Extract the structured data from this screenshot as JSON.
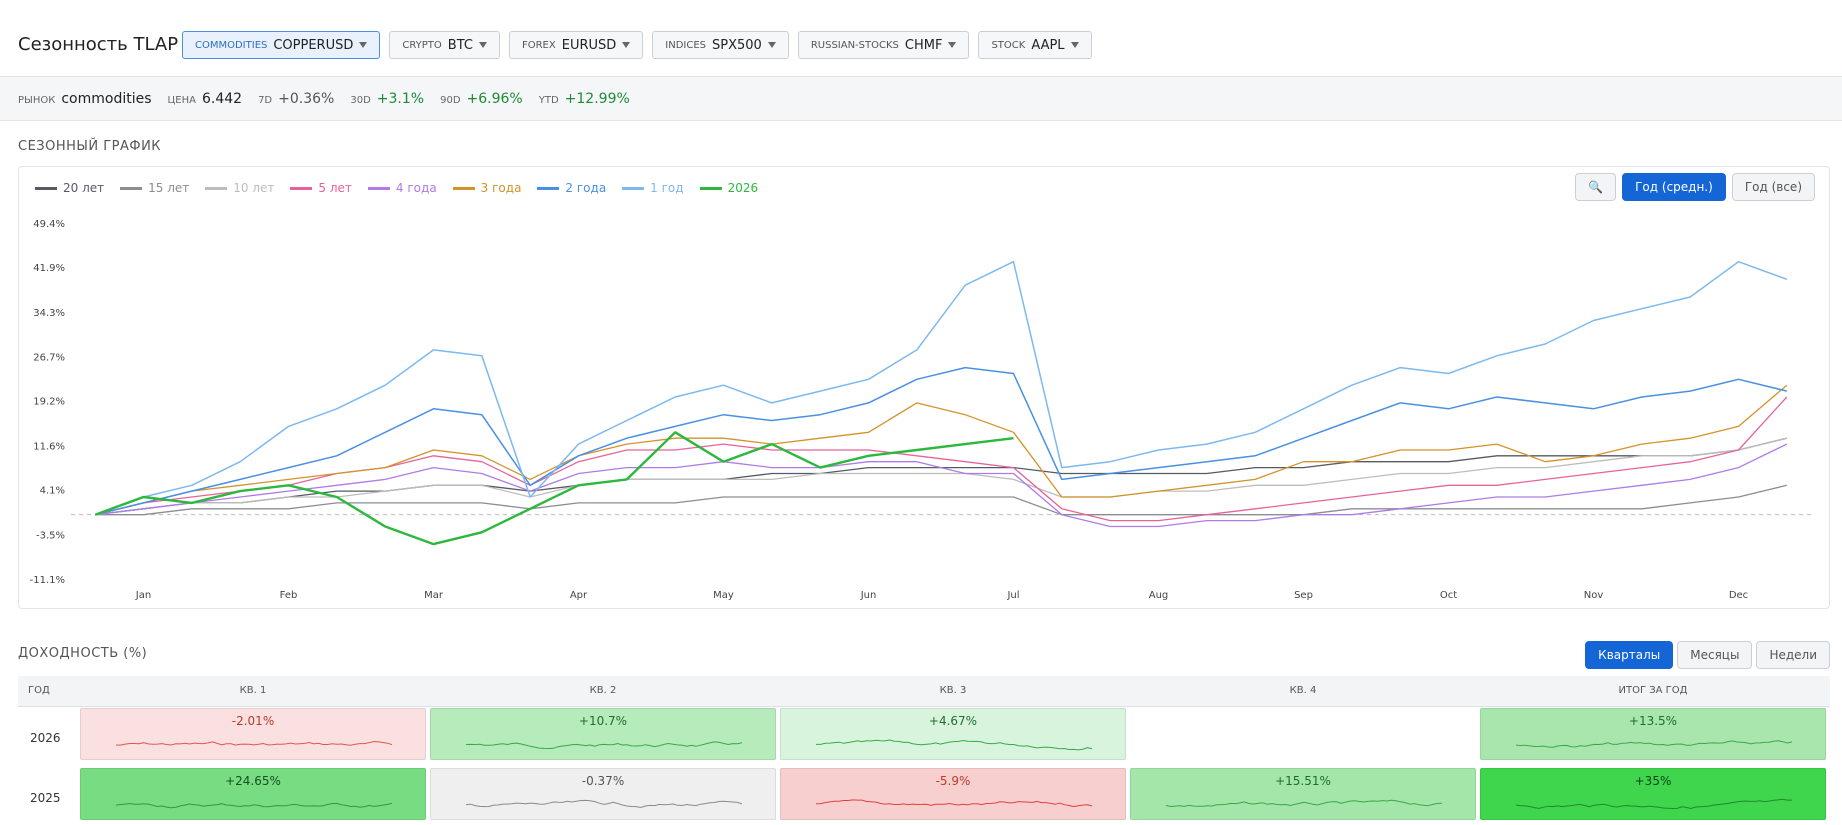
{
  "header": {
    "title": "Сезонность TLAP",
    "tabs": [
      {
        "category": "COMMODITIES",
        "symbol": "COPPERUSD",
        "active": true
      },
      {
        "category": "CRYPTO",
        "symbol": "BTC",
        "active": false
      },
      {
        "category": "FOREX",
        "symbol": "EURUSD",
        "active": false
      },
      {
        "category": "INDICES",
        "symbol": "SPX500",
        "active": false
      },
      {
        "category": "RUSSIAN-STOCKS",
        "symbol": "CHMF",
        "active": false
      },
      {
        "category": "STOCK",
        "symbol": "AAPL",
        "active": false
      }
    ]
  },
  "stats": [
    {
      "label": "РЫНОК",
      "value": "commodities",
      "color": "#222"
    },
    {
      "label": "ЦЕНА",
      "value": "6.442",
      "color": "#222"
    },
    {
      "label": "7D",
      "value": "+0.36%",
      "color": "#555"
    },
    {
      "label": "30D",
      "value": "+3.1%",
      "color": "#1e8a36"
    },
    {
      "label": "90D",
      "value": "+6.96%",
      "color": "#1e8a36"
    },
    {
      "label": "YTD",
      "value": "+12.99%",
      "color": "#1e8a36"
    }
  ],
  "chart_section": {
    "title": "СЕЗОННЫЙ ГРАФИК",
    "buttons": [
      {
        "label": "🔍",
        "active": false
      },
      {
        "label": "Год (средн.)",
        "active": true
      },
      {
        "label": "Год (все)",
        "active": false
      }
    ]
  },
  "chart_data": {
    "type": "line",
    "grid": false,
    "categories": [
      null,
      "Jan",
      null,
      null,
      "Feb",
      null,
      null,
      "Mar",
      null,
      null,
      "Apr",
      null,
      null,
      "May",
      null,
      null,
      "Jun",
      null,
      null,
      "Jul",
      null,
      null,
      "Aug",
      null,
      null,
      "Sep",
      null,
      null,
      "Oct",
      null,
      null,
      "Nov",
      null,
      null,
      "Dec",
      null
    ],
    "ylim": [
      -11.1,
      49.4
    ],
    "yticks": [
      {
        "value": 49.4,
        "label": "49.4%"
      },
      {
        "value": 41.9,
        "label": "41.9%"
      },
      {
        "value": 34.3,
        "label": "34.3%"
      },
      {
        "value": 26.7,
        "label": "26.7%"
      },
      {
        "value": 19.2,
        "label": "19.2%"
      },
      {
        "value": 11.6,
        "label": "11.6%"
      },
      {
        "value": 4.1,
        "label": "4.1%"
      },
      {
        "value": -3.5,
        "label": "-3.5%"
      },
      {
        "value": -11.1,
        "label": "-11.1%"
      }
    ],
    "series": [
      {
        "name": "20 лет",
        "color": "#555a64",
        "width": 1.3,
        "values": [
          0,
          1,
          2,
          2,
          3,
          4,
          4,
          5,
          5,
          4,
          5,
          6,
          6,
          6,
          7,
          7,
          8,
          8,
          8,
          8,
          7,
          7,
          7,
          7,
          8,
          8,
          9,
          9,
          9,
          10,
          10,
          10,
          10,
          10,
          11,
          13
        ]
      },
      {
        "name": "15 лет",
        "color": "#8a8d93",
        "width": 1.3,
        "values": [
          0,
          0,
          1,
          1,
          1,
          2,
          2,
          2,
          2,
          1,
          2,
          2,
          2,
          3,
          3,
          3,
          3,
          3,
          3,
          3,
          0,
          0,
          0,
          0,
          0,
          0,
          1,
          1,
          1,
          1,
          1,
          1,
          1,
          2,
          3,
          5
        ]
      },
      {
        "name": "10 лет",
        "color": "#bdbdbd",
        "width": 1.3,
        "values": [
          0,
          1,
          2,
          2,
          3,
          3,
          4,
          5,
          5,
          3,
          5,
          6,
          6,
          6,
          6,
          7,
          7,
          7,
          7,
          6,
          3,
          3,
          4,
          4,
          5,
          5,
          6,
          7,
          7,
          8,
          8,
          9,
          10,
          10,
          11,
          13
        ]
      },
      {
        "name": "5 лет",
        "color": "#e8629a",
        "width": 1.3,
        "values": [
          0,
          2,
          3,
          4,
          5,
          7,
          8,
          10,
          9,
          5,
          9,
          11,
          11,
          12,
          11,
          11,
          11,
          10,
          9,
          8,
          1,
          -1,
          -1,
          0,
          1,
          2,
          3,
          4,
          5,
          5,
          6,
          7,
          8,
          9,
          11,
          20
        ]
      },
      {
        "name": "4 года",
        "color": "#b07ae8",
        "width": 1.3,
        "values": [
          0,
          1,
          2,
          3,
          4,
          5,
          6,
          8,
          7,
          4,
          7,
          8,
          8,
          9,
          8,
          8,
          9,
          9,
          7,
          7,
          0,
          -2,
          -2,
          -1,
          -1,
          0,
          0,
          1,
          2,
          3,
          3,
          4,
          5,
          6,
          8,
          12
        ]
      },
      {
        "name": "3 года",
        "color": "#d4922a",
        "width": 1.3,
        "values": [
          0,
          2,
          4,
          5,
          6,
          7,
          8,
          11,
          10,
          6,
          10,
          12,
          13,
          13,
          12,
          13,
          14,
          19,
          17,
          14,
          3,
          3,
          4,
          5,
          6,
          9,
          9,
          11,
          11,
          12,
          9,
          10,
          12,
          13,
          15,
          22
        ]
      },
      {
        "name": "2 года",
        "color": "#4a90e2",
        "width": 1.5,
        "values": [
          0,
          2,
          4,
          6,
          8,
          10,
          14,
          18,
          17,
          5,
          10,
          13,
          15,
          17,
          16,
          17,
          19,
          23,
          25,
          24,
          6,
          7,
          8,
          9,
          10,
          13,
          16,
          19,
          18,
          20,
          19,
          18,
          20,
          21,
          23,
          21
        ]
      },
      {
        "name": "1 год",
        "color": "#7cb9ef",
        "width": 1.5,
        "values": [
          0,
          3,
          5,
          9,
          15,
          18,
          22,
          28,
          27,
          3,
          12,
          16,
          20,
          22,
          19,
          21,
          23,
          28,
          39,
          43,
          8,
          9,
          11,
          12,
          14,
          18,
          22,
          25,
          24,
          27,
          29,
          33,
          35,
          37,
          43,
          40
        ]
      },
      {
        "name": "2026",
        "color": "#2db83d",
        "width": 2.4,
        "values": [
          0,
          3,
          2,
          4,
          5,
          3,
          -2,
          -5,
          -3,
          1,
          5,
          6,
          14,
          9,
          12,
          8,
          10,
          11,
          12,
          13,
          null,
          null,
          null,
          null,
          null,
          null,
          null,
          null,
          null,
          null,
          null,
          null,
          null,
          null,
          null,
          null
        ]
      }
    ]
  },
  "returns": {
    "title": "ДОХОДНОСТЬ (%)",
    "buttons": [
      {
        "label": "Кварталы",
        "active": true
      },
      {
        "label": "Месяцы",
        "active": false
      },
      {
        "label": "Недели",
        "active": false
      }
    ],
    "table": {
      "header": [
        "ГОД",
        "КВ. 1",
        "КВ. 2",
        "КВ. 3",
        "КВ. 4",
        "ИТОГ ЗА ГОД"
      ],
      "rows": [
        {
          "year": "2026",
          "cells": [
            {
              "label": "-2.01%",
              "bg": "#fae0e0",
              "line": "#e0554f",
              "text": "#c0392b"
            },
            {
              "label": "+10.7%",
              "bg": "#b6ebbb",
              "line": "#3aa84a",
              "text": "#1e6e2c"
            },
            {
              "label": "+4.67%",
              "bg": "#d9f4dc",
              "line": "#3aa84a",
              "text": "#1e6e2c"
            },
            null,
            {
              "label": "+13.5%",
              "bg": "#a8e6ae",
              "line": "#3aa84a",
              "text": "#1e6e2c"
            }
          ]
        },
        {
          "year": "2025",
          "cells": [
            {
              "label": "+24.65%",
              "bg": "#78dc82",
              "line": "#2f9a3e",
              "text": "#174f20"
            },
            {
              "label": "-0.37%",
              "bg": "#efefef",
              "line": "#8a8a8a",
              "text": "#555"
            },
            {
              "label": "-5.9%",
              "bg": "#f8cfcf",
              "line": "#e04040",
              "text": "#c0392b"
            },
            {
              "label": "+15.51%",
              "bg": "#a4e6aa",
              "line": "#3aa84a",
              "text": "#1e6e2c"
            },
            {
              "label": "+35%",
              "bg": "#3fd54c",
              "line": "#1f8a2e",
              "text": "#0f4417"
            }
          ]
        }
      ]
    }
  }
}
